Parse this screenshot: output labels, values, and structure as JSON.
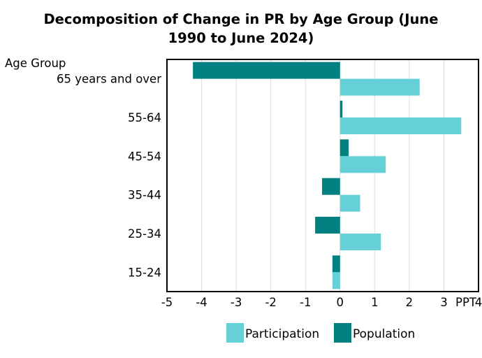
{
  "chart_data": {
    "type": "bar",
    "orientation": "horizontal",
    "title": "Decomposition of Change in PR by Age Group (June 1990 to June 2024)",
    "ylabel": "Age Group",
    "xlabel": "PPT",
    "categories": [
      "15-24",
      "25-34",
      "35-44",
      "45-54",
      "55-64",
      "65 years and over"
    ],
    "series": [
      {
        "name": "Participation",
        "color": "#66d0d8",
        "values": [
          -0.22,
          1.18,
          0.58,
          1.32,
          3.5,
          2.3
        ]
      },
      {
        "name": "Population",
        "color": "#008080",
        "values": [
          -0.22,
          -0.72,
          -0.52,
          0.25,
          0.07,
          -4.25
        ]
      }
    ],
    "xlim": [
      -5,
      4
    ],
    "xticks": [
      "-5",
      "-4",
      "-3",
      "-2",
      "-1",
      "0",
      "1",
      "2",
      "3",
      "4"
    ],
    "grid": "vertical",
    "legend_position": "bottom"
  }
}
